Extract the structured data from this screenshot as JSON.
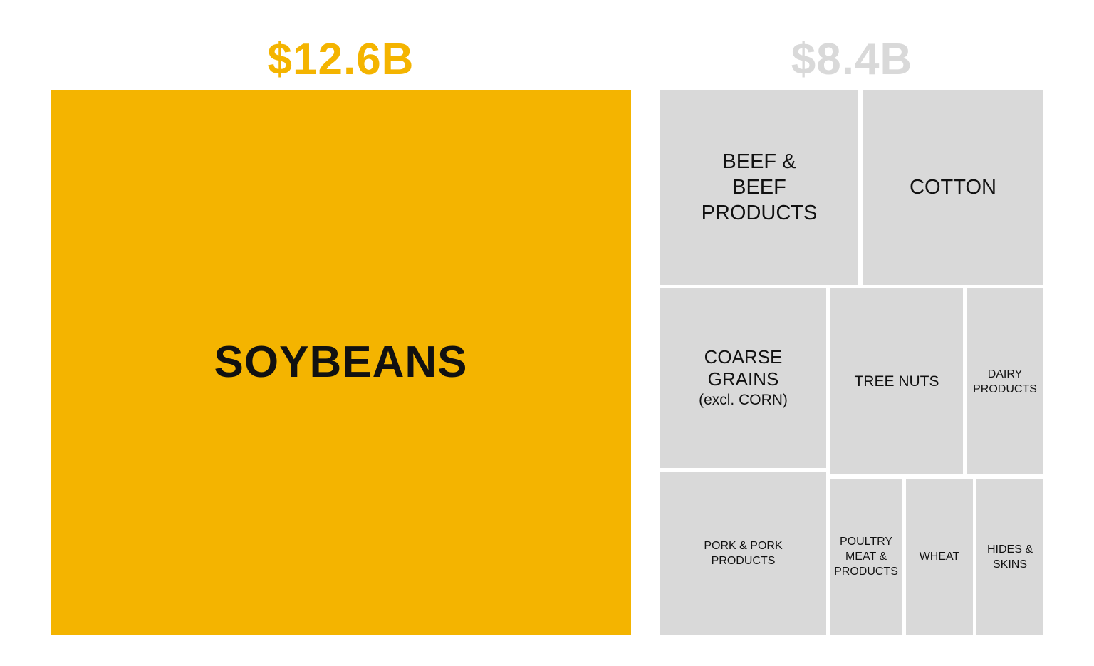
{
  "chart_data": {
    "type": "treemap",
    "groups": [
      {
        "total_label": "$12.6B",
        "value": 12.6,
        "color": "#f4b400",
        "items": [
          {
            "label": "SOYBEANS",
            "value": 12.6
          }
        ]
      },
      {
        "total_label": "$8.4B",
        "value": 8.4,
        "color": "#d9d9d9",
        "items": [
          {
            "label": "BEEF &\nBEEF\nPRODUCTS"
          },
          {
            "label": "COTTON"
          },
          {
            "label": "COARSE\nGRAINS",
            "sublabel": "(excl. CORN)"
          },
          {
            "label": "TREE NUTS"
          },
          {
            "label": "DAIRY\nPRODUCTS"
          },
          {
            "label": "PORK & PORK\nPRODUCTS"
          },
          {
            "label": "POULTRY\nMEAT &\nPRODUCTS"
          },
          {
            "label": "WHEAT"
          },
          {
            "label": "HIDES &\nSKINS"
          }
        ]
      }
    ]
  }
}
